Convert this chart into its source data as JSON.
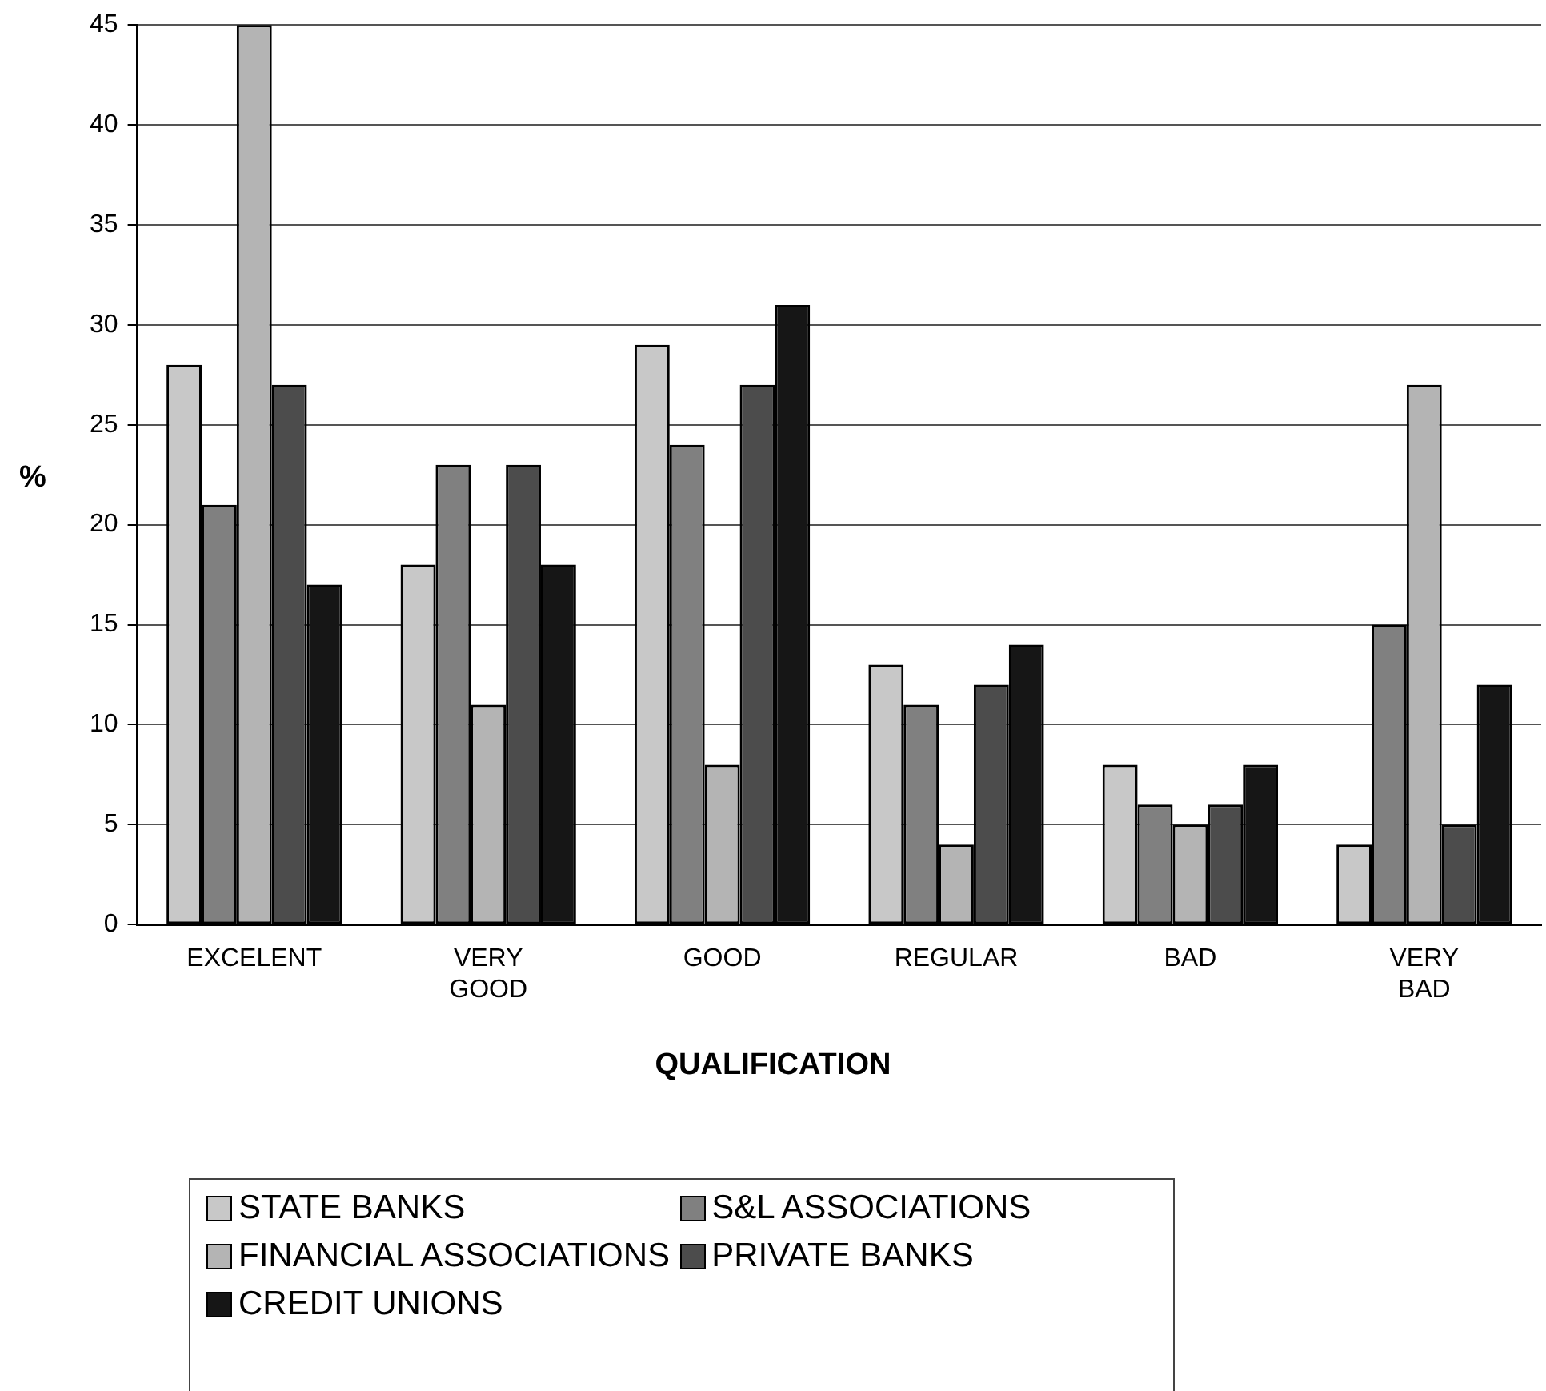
{
  "chart_data": {
    "type": "bar",
    "xlabel": "QUALIFICATION",
    "ylabel": "%",
    "categories": [
      "EXCELENT",
      "VERY GOOD",
      "GOOD",
      "REGULAR",
      "BAD",
      "VERY BAD"
    ],
    "series": [
      {
        "name": "STATE BANKS",
        "color": "#c8c8c8",
        "values": [
          28,
          18,
          29,
          13,
          8,
          4
        ]
      },
      {
        "name": "S&L ASSOCIATIONS",
        "color": "#808080",
        "values": [
          21,
          23,
          24,
          11,
          6,
          15
        ]
      },
      {
        "name": "FINANCIAL ASSOCIATIONS",
        "color": "#b4b4b4",
        "values": [
          45,
          11,
          8,
          4,
          5,
          27
        ]
      },
      {
        "name": "PRIVATE BANKS",
        "color": "#4c4c4c",
        "values": [
          27,
          23,
          27,
          12,
          6,
          5
        ]
      },
      {
        "name": "CREDIT UNIONS",
        "color": "#161616",
        "values": [
          17,
          18,
          31,
          14,
          8,
          12
        ]
      }
    ],
    "ylim": [
      0,
      45
    ],
    "yticks": [
      0,
      5,
      10,
      15,
      20,
      25,
      30,
      35,
      40,
      45
    ],
    "grid": "y",
    "legend": "bottom"
  }
}
